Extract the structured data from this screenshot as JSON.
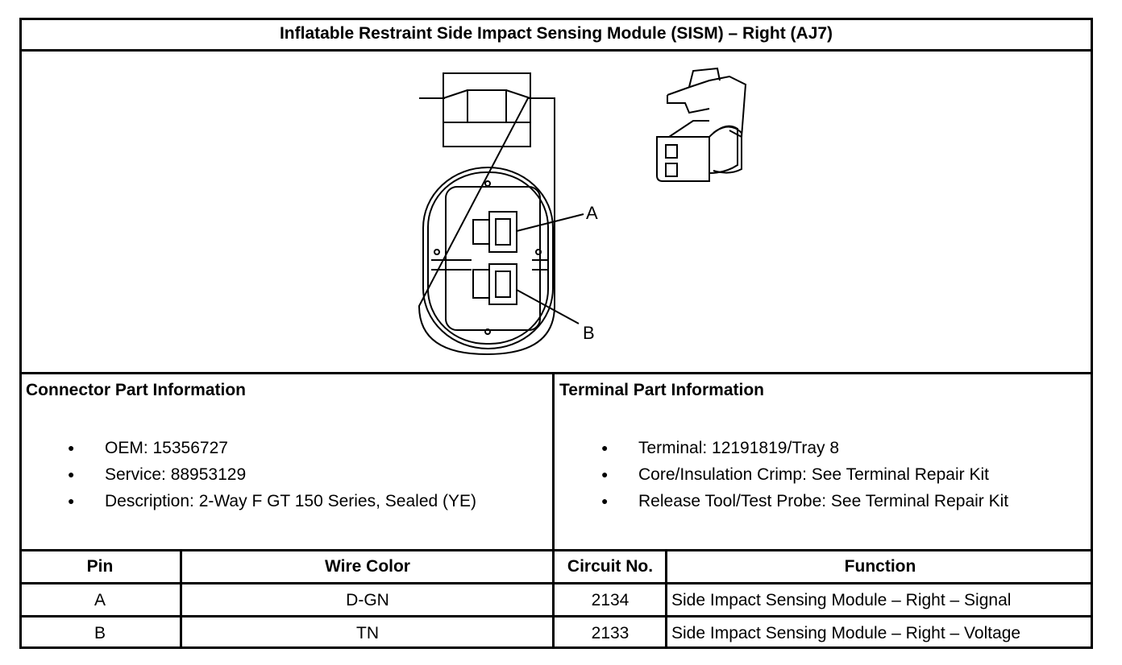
{
  "title": "Inflatable Restraint Side Impact Sensing Module (SISM) – Right (AJ7)",
  "diagram": {
    "pin_labels": [
      "A",
      "B"
    ]
  },
  "connector_info": {
    "heading": "Connector Part Information",
    "items": [
      "OEM: 15356727",
      "Service: 88953129",
      "Description: 2-Way F GT 150 Series, Sealed (YE)"
    ]
  },
  "terminal_info": {
    "heading": "Terminal Part Information",
    "items": [
      "Terminal: 12191819/Tray 8",
      "Core/Insulation Crimp: See Terminal Repair Kit",
      "Release Tool/Test Probe: See Terminal Repair Kit"
    ]
  },
  "table": {
    "headers": [
      "Pin",
      "Wire Color",
      "Circuit No.",
      "Function"
    ],
    "rows": [
      [
        "A",
        "D-GN",
        "2134",
        "Side Impact Sensing Module – Right – Signal"
      ],
      [
        "B",
        "TN",
        "2133",
        "Side Impact Sensing Module – Right – Voltage"
      ]
    ]
  }
}
